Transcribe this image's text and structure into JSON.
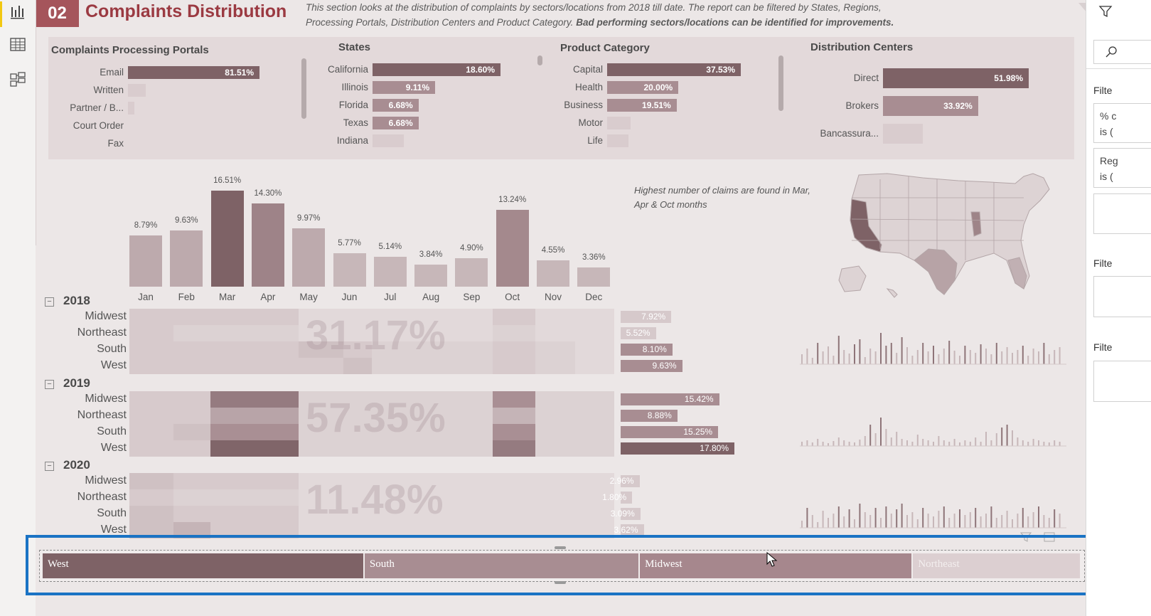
{
  "nav": {
    "icons": [
      "report-view-icon",
      "data-view-icon",
      "model-view-icon"
    ]
  },
  "header": {
    "number": "02",
    "title": "Complaints Distribution",
    "desc_plain": "This section looks at the distribution of complaints by sectors/locations from 2018 till date.  The report can be filtered by States, Regions, Processing Portals, Distribution Centers and Product Category.",
    "desc_bold": "Bad performing sectors/locations can be identified for improvements."
  },
  "portals": {
    "title": "Complaints Processing Portals",
    "items": [
      {
        "label": "Email",
        "value": 81.51,
        "value_label": "81.51%"
      },
      {
        "label": "Written",
        "value": 11,
        "value_label": ""
      },
      {
        "label": "Partner / B...",
        "value": 4,
        "value_label": ""
      },
      {
        "label": "Court Order",
        "value": 0,
        "value_label": ""
      },
      {
        "label": "Fax",
        "value": 0,
        "value_label": ""
      }
    ]
  },
  "states": {
    "title": "States",
    "items": [
      {
        "label": "California",
        "value": 18.6,
        "value_label": "18.60%"
      },
      {
        "label": "Illinois",
        "value": 9.11,
        "value_label": "9.11%"
      },
      {
        "label": "Florida",
        "value": 6.68,
        "value_label": "6.68%"
      },
      {
        "label": "Texas",
        "value": 6.68,
        "value_label": "6.68%"
      },
      {
        "label": "Indiana",
        "value": 4.5,
        "value_label": ""
      }
    ]
  },
  "product": {
    "title": "Product Category",
    "items": [
      {
        "label": "Capital",
        "value": 37.53,
        "value_label": "37.53%"
      },
      {
        "label": "Health",
        "value": 20.0,
        "value_label": "20.00%"
      },
      {
        "label": "Business",
        "value": 19.51,
        "value_label": "19.51%"
      },
      {
        "label": "Motor",
        "value": 6.5,
        "value_label": ""
      },
      {
        "label": "Life",
        "value": 6,
        "value_label": ""
      }
    ]
  },
  "centers": {
    "title": "Distribution Centers",
    "items": [
      {
        "label": "Direct",
        "value": 51.98,
        "value_label": "51.98%"
      },
      {
        "label": "Brokers",
        "value": 33.92,
        "value_label": "33.92%"
      },
      {
        "label": "Bancassura...",
        "value": 14.1,
        "value_label": ""
      }
    ]
  },
  "chart_data": {
    "type": "bar",
    "categories": [
      "Jan",
      "Feb",
      "Mar",
      "Apr",
      "May",
      "Jun",
      "Jul",
      "Aug",
      "Sep",
      "Oct",
      "Nov",
      "Dec"
    ],
    "values": [
      8.79,
      9.63,
      16.51,
      14.3,
      9.97,
      5.77,
      5.14,
      3.84,
      4.9,
      13.24,
      4.55,
      3.36
    ],
    "value_labels": [
      "8.79%",
      "9.63%",
      "16.51%",
      "14.30%",
      "9.97%",
      "5.77%",
      "5.14%",
      "3.84%",
      "4.90%",
      "13.24%",
      "4.55%",
      "3.36%"
    ],
    "ylim": [
      0,
      16.51
    ]
  },
  "note": "Highest number of claims are found in Mar, Apr & Oct months",
  "matrix": {
    "years": [
      {
        "year": "2018",
        "collapse": "−",
        "total": "31.17%",
        "regions": [
          {
            "name": "Midwest",
            "bar": 7.92,
            "label": "7.92%",
            "cells": [
              3,
              3,
              3,
              3,
              1,
              1,
              1,
              1,
              1,
              3,
              1,
              1
            ]
          },
          {
            "name": "Northeast",
            "bar": 5.52,
            "label": "5.52%",
            "cells": [
              3,
              2,
              2,
              2,
              1,
              1,
              1,
              1,
              1,
              2,
              1,
              1
            ]
          },
          {
            "name": "South",
            "bar": 8.1,
            "label": "8.10%",
            "cells": [
              3,
              3,
              3,
              3,
              4,
              3,
              2,
              2,
              2,
              3,
              2,
              1
            ]
          },
          {
            "name": "West",
            "bar": 9.63,
            "label": "9.63%",
            "cells": [
              3,
              3,
              3,
              3,
              3,
              4,
              2,
              2,
              2,
              3,
              2,
              1
            ]
          }
        ]
      },
      {
        "year": "2019",
        "collapse": "−",
        "total": "57.35%",
        "regions": [
          {
            "name": "Midwest",
            "bar": 15.42,
            "label": "15.42%",
            "cells": [
              3,
              3,
              8,
              8,
              2,
              2,
              2,
              2,
              2,
              7,
              2,
              2
            ]
          },
          {
            "name": "Northeast",
            "bar": 8.88,
            "label": "8.88%",
            "cells": [
              3,
              3,
              6,
              6,
              2,
              2,
              2,
              2,
              2,
              5,
              2,
              2
            ]
          },
          {
            "name": "South",
            "bar": 15.25,
            "label": "15.25%",
            "cells": [
              3,
              4,
              7,
              7,
              2,
              2,
              2,
              2,
              2,
              7,
              2,
              2
            ]
          },
          {
            "name": "West",
            "bar": 17.8,
            "label": "17.80%",
            "cells": [
              3,
              3,
              9,
              9,
              2,
              2,
              2,
              2,
              2,
              8,
              2,
              2
            ]
          }
        ]
      },
      {
        "year": "2020",
        "collapse": "−",
        "total": "11.48%",
        "regions": [
          {
            "name": "Midwest",
            "bar": 2.96,
            "label": "2.96%",
            "cells": [
              4,
              3,
              3,
              3,
              1,
              1,
              1,
              1,
              1,
              1,
              1,
              1
            ]
          },
          {
            "name": "Northeast",
            "bar": 1.8,
            "label": "1.80%",
            "cells": [
              3,
              2,
              2,
              2,
              1,
              1,
              1,
              1,
              1,
              1,
              1,
              1
            ]
          },
          {
            "name": "South",
            "bar": 3.09,
            "label": "3.09%",
            "cells": [
              4,
              3,
              3,
              3,
              1,
              1,
              1,
              1,
              1,
              1,
              1,
              1
            ]
          },
          {
            "name": "West",
            "bar": 3.62,
            "label": "3.62%",
            "cells": [
              4,
              5,
              3,
              3,
              1,
              1,
              1,
              1,
              1,
              1,
              1,
              1
            ]
          }
        ]
      }
    ]
  },
  "slicer": {
    "items": [
      {
        "label": "West",
        "share": 31,
        "color": "#7e6266"
      },
      {
        "label": "South",
        "share": 26.5,
        "color": "#a88d92"
      },
      {
        "label": "Midwest",
        "share": 26.3,
        "color": "#a6878d"
      },
      {
        "label": "Northeast",
        "share": 16.2,
        "color": "#dccfd1"
      }
    ]
  },
  "right_pane": {
    "filter_label_1": "Filte",
    "card_1_line_1": "% c",
    "card_1_line_2": "is (",
    "card_2_line_1": "Reg",
    "card_2_line_2": "is (",
    "filter_label_2": "Filte",
    "filter_label_3": "Filte"
  },
  "colors": {
    "accent": "#a5555b",
    "title": "#9b3a42",
    "bar_dark": "#7e6266",
    "bar_mid": "#a88d92",
    "bar_light": "#d9ccce",
    "selection": "#1a73c4"
  }
}
